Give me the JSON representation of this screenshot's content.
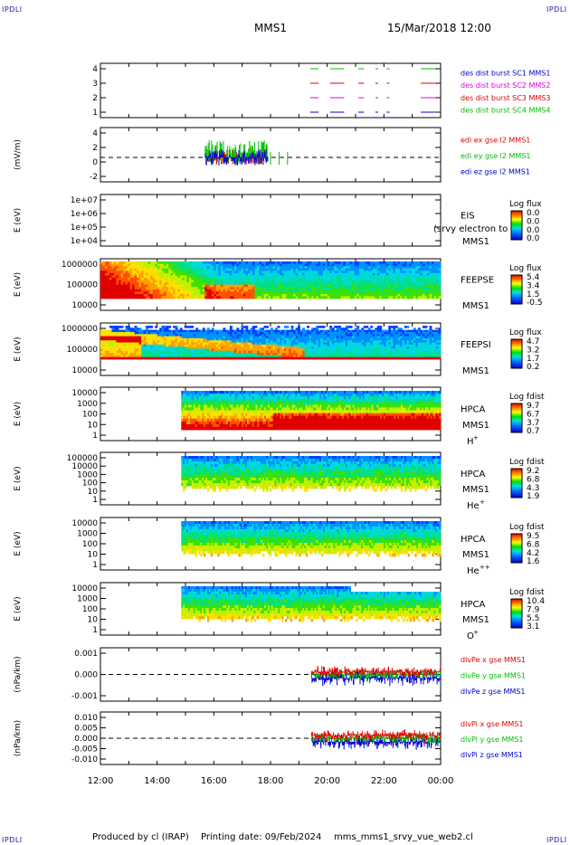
{
  "corners": {
    "label": "IPDLI"
  },
  "header": {
    "spacecraft": "MMS1",
    "datetime": "15/Mar/2018 12:00"
  },
  "footer": {
    "produced": "Produced by cl (IRAP)",
    "printing": "Printing date: 09/Feb/2024",
    "script": "mms_mms1_srvy_vue_web2.cl"
  },
  "colors": {
    "red": "#e00000",
    "green": "#00c000",
    "blue": "#0000d0",
    "magenta": "#e000e0"
  },
  "chart_data": [
    {
      "type": "line",
      "ylim": [
        0.5,
        4.5
      ],
      "yticks": [
        "4",
        "3",
        "2",
        "1"
      ],
      "series": [
        {
          "name": "des dist burst SC1 MMS1",
          "color": "#0000d0",
          "level": 1
        },
        {
          "name": "des dist burst SC2 MMS2",
          "color": "#e000e0",
          "level": 2
        },
        {
          "name": "des dist burst SC3 MMS3",
          "color": "#e00000",
          "level": 3
        },
        {
          "name": "des dist burst SC4 MMS4",
          "color": "#00c000",
          "level": 4
        }
      ]
    },
    {
      "type": "line",
      "ylabel": "(mV/m)",
      "ylim": [
        -3,
        5
      ],
      "yticks": [
        "4",
        "2",
        "0",
        "-2"
      ],
      "series": [
        {
          "name": "edi ex gse l2 MMS1",
          "color": "#e00000"
        },
        {
          "name": "edi ey gse l2 MMS1",
          "color": "#00c000"
        },
        {
          "name": "edi ez gse l2 MMS1",
          "color": "#0000d0"
        }
      ]
    },
    {
      "type": "heatmap",
      "ylabel": "E (eV)",
      "yticks": [
        "1e+07",
        "1e+06",
        "1e+05",
        "1e+04"
      ],
      "instrument": "EIS",
      "overlay": "(srvy electron to",
      "sc": "MMS1",
      "colorbar_title": "Log flux",
      "colorbar_ticks": [
        "0.0",
        "0.0",
        "0.0",
        "0.0"
      ]
    },
    {
      "type": "heatmap",
      "ylabel": "E (eV)",
      "yticks": [
        "1000000",
        "100000",
        "10000"
      ],
      "instrument": "FEEPSE",
      "sc": "MMS1",
      "colorbar_title": "Log flux",
      "colorbar_ticks": [
        "5.4",
        "3.4",
        "1.5",
        "-0.5"
      ]
    },
    {
      "type": "heatmap",
      "ylabel": "E (eV)",
      "yticks": [
        "1000000",
        "100000",
        "10000"
      ],
      "instrument": "FEEPSI",
      "sc": "MMS1",
      "colorbar_title": "Log flux",
      "colorbar_ticks": [
        "4.7",
        "3.2",
        "1.7",
        "0.2"
      ]
    },
    {
      "type": "heatmap",
      "ylabel": "E (eV)",
      "yticks": [
        "10000",
        "1000",
        "100",
        "10",
        "1"
      ],
      "instrument": "HPCA",
      "sc": "MMS1",
      "species": "H",
      "charge": "+",
      "colorbar_title": "Log fdist",
      "colorbar_ticks": [
        "9.7",
        "6.7",
        "3.7",
        "0.7"
      ]
    },
    {
      "type": "heatmap",
      "ylabel": "E (eV)",
      "yticks": [
        "100000",
        "10000",
        "1000",
        "100",
        "10",
        "1"
      ],
      "instrument": "HPCA",
      "sc": "MMS1",
      "species": "He",
      "charge": "+",
      "colorbar_title": "Log fdist",
      "colorbar_ticks": [
        "9.2",
        "6.8",
        "4.3",
        "1.9"
      ]
    },
    {
      "type": "heatmap",
      "ylabel": "E (eV)",
      "yticks": [
        "10000",
        "1000",
        "100",
        "10",
        "1"
      ],
      "instrument": "HPCA",
      "sc": "MMS1",
      "species": "He",
      "charge": "++",
      "colorbar_title": "Log fdist",
      "colorbar_ticks": [
        "9.5",
        "6.8",
        "4.2",
        "1.6"
      ]
    },
    {
      "type": "heatmap",
      "ylabel": "E (eV)",
      "yticks": [
        "10000",
        "1000",
        "100",
        "10",
        "1"
      ],
      "instrument": "HPCA",
      "sc": "MMS1",
      "species": "O",
      "charge": "+",
      "colorbar_title": "Log fdist",
      "colorbar_ticks": [
        "10.4",
        "7.9",
        "5.5",
        "3.1"
      ]
    },
    {
      "type": "line",
      "ylabel": "(nPa/km)",
      "yticks": [
        "0.001",
        "0.000",
        "-0.001"
      ],
      "series": [
        {
          "name": "dlvPe x gse MMS1",
          "color": "#e00000"
        },
        {
          "name": "dlvPe y gse MMS1",
          "color": "#00c000"
        },
        {
          "name": "dlvPe z gse MMS1",
          "color": "#0000d0"
        }
      ]
    },
    {
      "type": "line",
      "ylabel": "(nPa/km)",
      "yticks": [
        "0.010",
        "0.005",
        "0.000",
        "-0.005",
        "-0.010"
      ],
      "series": [
        {
          "name": "dlvPi x gse MMS1",
          "color": "#e00000"
        },
        {
          "name": "dlvPi y gse MMS1",
          "color": "#00c000"
        },
        {
          "name": "dlvPi z gse MMS1",
          "color": "#0000d0"
        }
      ]
    }
  ],
  "xaxis": {
    "ticks": [
      "12:00",
      "14:00",
      "16:00",
      "18:00",
      "20:00",
      "22:00",
      "00:00"
    ],
    "range_hours": [
      12,
      24
    ]
  }
}
